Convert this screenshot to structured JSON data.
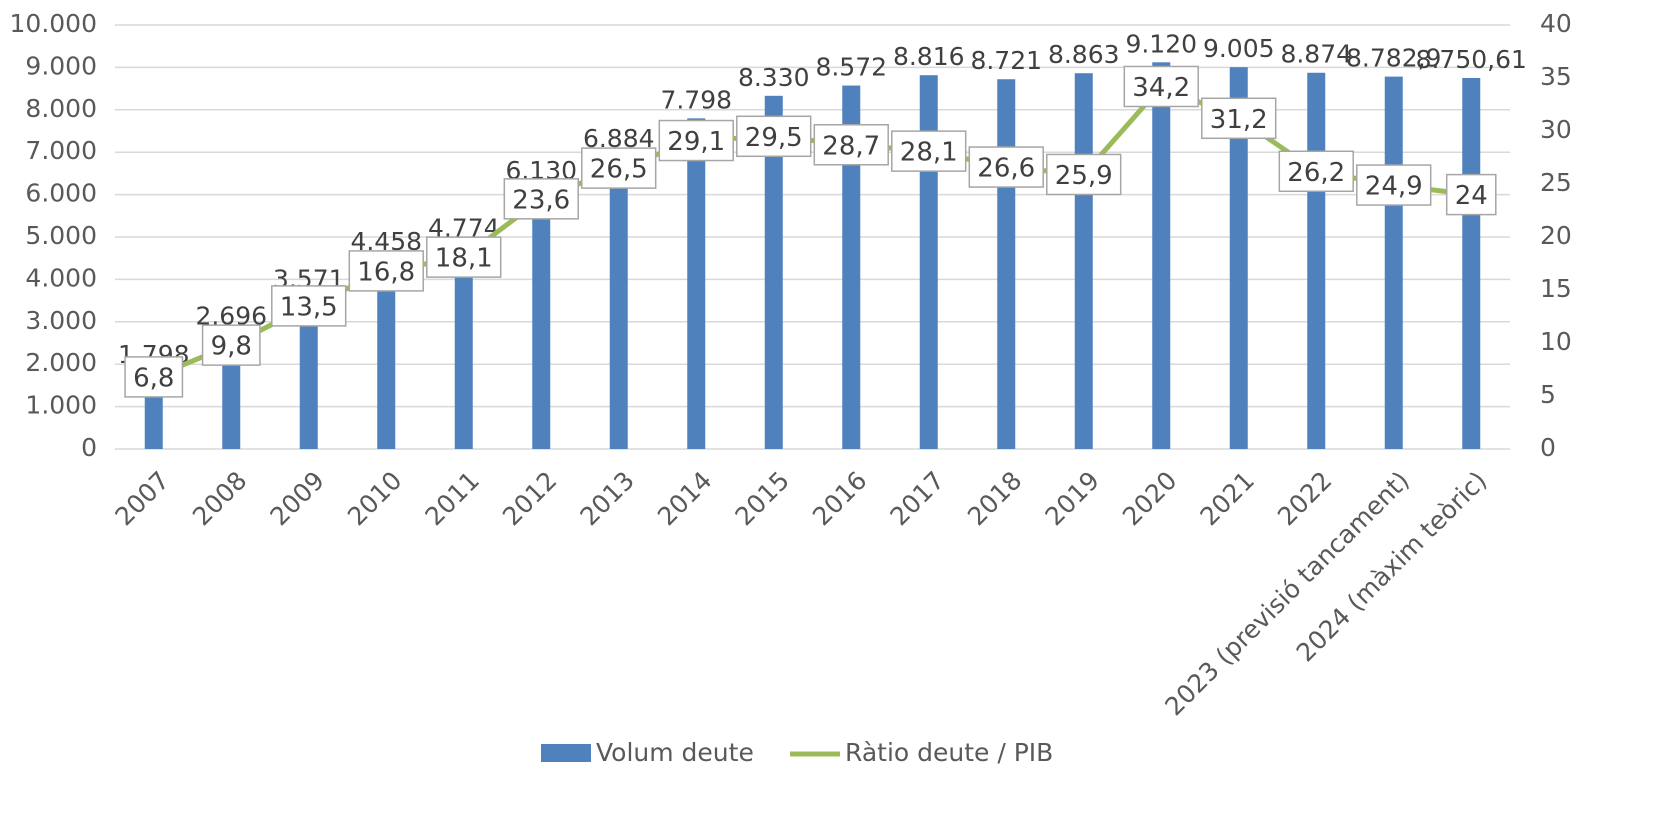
{
  "chart_data": {
    "type": "bar",
    "categories": [
      "2007",
      "2008",
      "2009",
      "2010",
      "2011",
      "2012",
      "2013",
      "2014",
      "2015",
      "2016",
      "2017",
      "2018",
      "2019",
      "2020",
      "2021",
      "2022",
      "2023 (previsió tancament)",
      "2024 (màxim teòric)"
    ],
    "series": [
      {
        "name": "Volum deute",
        "color": "#4f81bd",
        "values": [
          1798,
          2696,
          3571,
          4458,
          4774,
          6130,
          6884,
          7798,
          8330,
          8572,
          8816,
          8721,
          8863,
          9120,
          9005,
          8874,
          8782.9,
          8750.61
        ],
        "value_labels": [
          "1.798",
          "2.696",
          "3.571",
          "4.458",
          "4.774",
          "6.130",
          "6.884",
          "7.798",
          "8.330",
          "8.572",
          "8.816",
          "8.721",
          "8.863",
          "9.120",
          "9.005",
          "8.874",
          "8.782,9",
          "8.750,61"
        ]
      },
      {
        "name": "Ràtio deute / PIB",
        "type": "line",
        "axis": "y2",
        "color": "#9bbb59",
        "values": [
          6.8,
          9.8,
          13.5,
          16.8,
          18.1,
          23.6,
          26.5,
          29.1,
          29.5,
          28.7,
          28.1,
          26.6,
          25.9,
          34.2,
          31.2,
          26.2,
          24.9,
          24
        ],
        "value_labels": [
          "6,8",
          "9,8",
          "13,5",
          "16,8",
          "18,1",
          "23,6",
          "26,5",
          "29,1",
          "29,5",
          "28,7",
          "28,1",
          "26,6",
          "25,9",
          "34,2",
          "31,2",
          "26,2",
          "24,9",
          "24"
        ]
      }
    ],
    "ylim": [
      0,
      10000
    ],
    "yticks": [
      0,
      {
        "value": 1000,
        "label": "1.000"
      },
      {
        "value": 2000,
        "label": "2.000"
      },
      {
        "value": 3000,
        "label": "3.000"
      },
      {
        "value": 4000,
        "label": "4.000"
      },
      {
        "value": 5000,
        "label": "5.000"
      },
      {
        "value": 6000,
        "label": "6.000"
      },
      {
        "value": 7000,
        "label": "7.000"
      },
      {
        "value": 8000,
        "label": "8.000"
      },
      {
        "value": 9000,
        "label": "9.000"
      },
      {
        "value": 10000,
        "label": "10.000"
      }
    ],
    "y2lim": [
      0,
      40
    ],
    "y2ticks": [
      0,
      5,
      10,
      15,
      20,
      25,
      30,
      35,
      40
    ],
    "grid": true,
    "legend": "bottom"
  }
}
